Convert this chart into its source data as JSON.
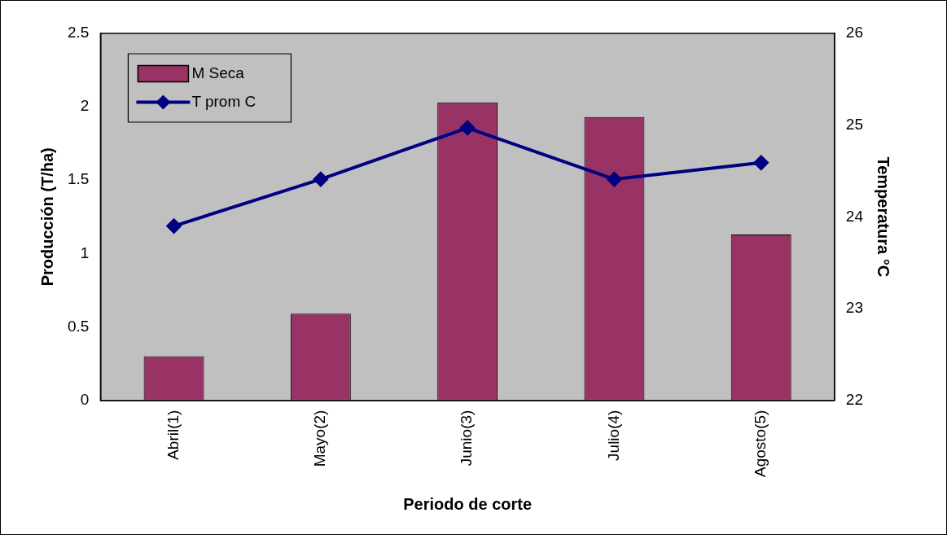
{
  "chart_data": {
    "type": "bar",
    "xlabel": "Periodo de corte",
    "ylabel": "Producción (T/ha)",
    "y2label": "Temperatura °C",
    "categories": [
      "Abril(1)",
      "Mayo(2)",
      "Junio(3)",
      "Julio(4)",
      "Agosto(5)"
    ],
    "series": [
      {
        "name": "M Seca",
        "color": "#993366",
        "values": [
          0.3,
          0.59,
          2.03,
          1.93,
          1.13
        ]
      },
      {
        "name": "T prom C",
        "type": "line",
        "axis": "y2",
        "color": "#000080",
        "marker": "diamond",
        "values": [
          23.9,
          24.41,
          24.97,
          24.41,
          24.59
        ]
      }
    ],
    "ylim": [
      0,
      2.5
    ],
    "yticks": [
      0,
      0.5,
      1,
      1.5,
      2,
      2.5
    ],
    "y2lim": [
      22,
      26
    ],
    "y2ticks": [
      22,
      23,
      24,
      25,
      26
    ],
    "grid": false,
    "legend": "top left"
  }
}
